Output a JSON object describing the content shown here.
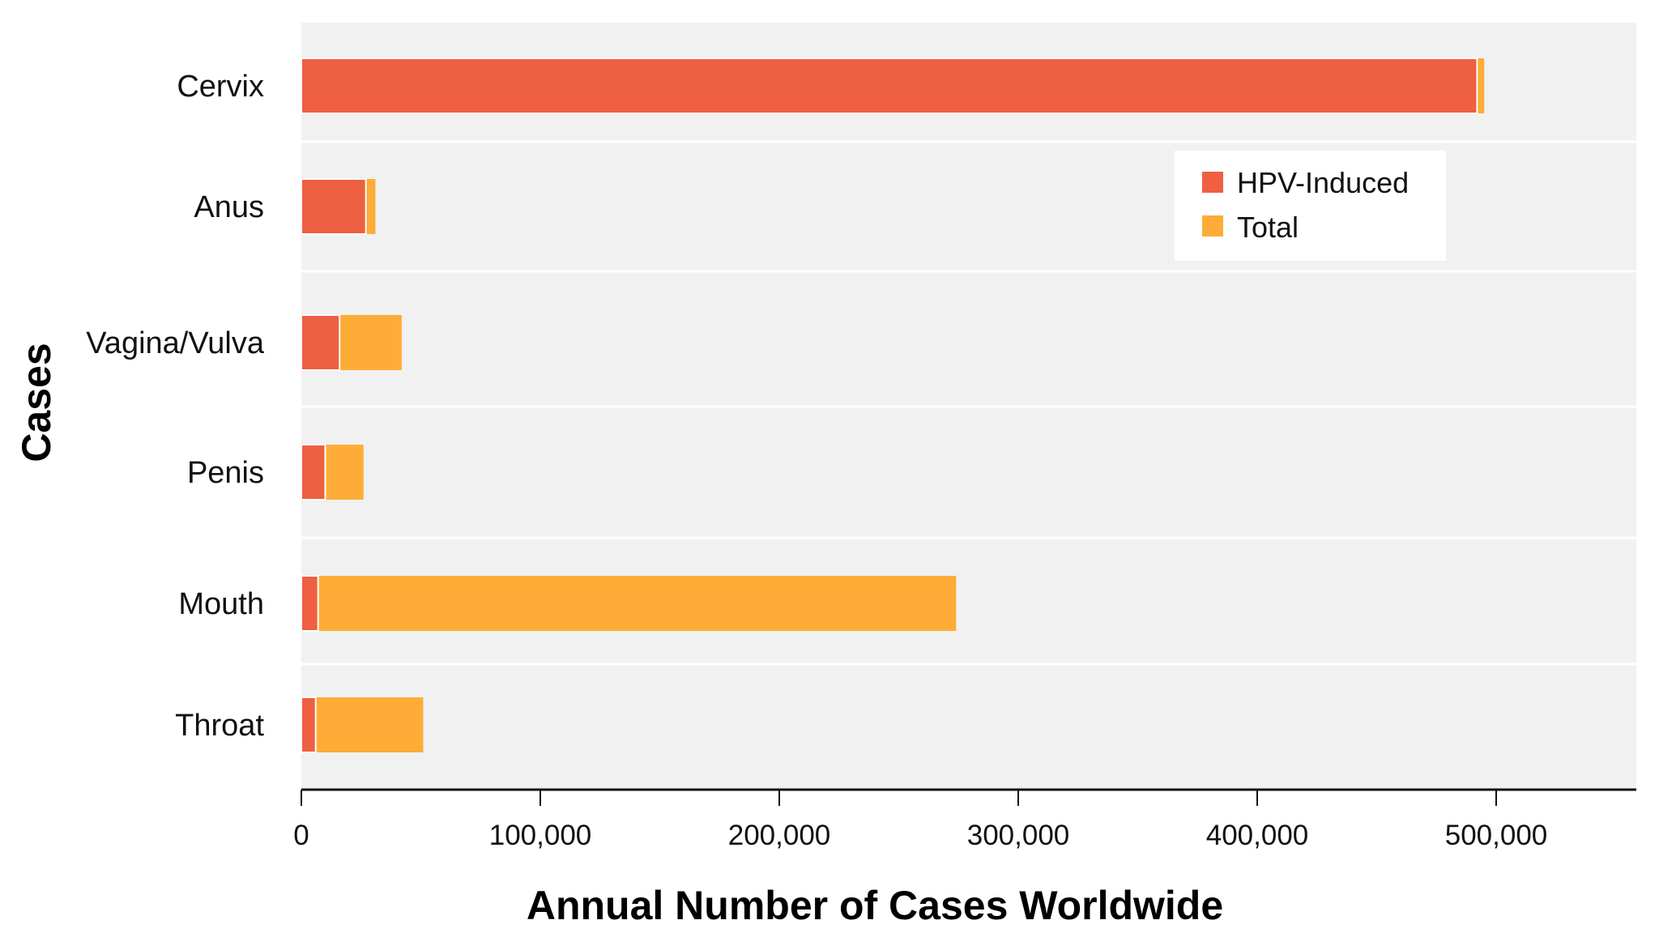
{
  "chart_data": {
    "type": "bar",
    "orientation": "horizontal",
    "stacked": true,
    "categories": [
      "Cervix",
      "Anus",
      "Vagina/Vulva",
      "Penis",
      "Mouth",
      "Throat"
    ],
    "series": [
      {
        "name": "HPV-Induced",
        "color": "#ef5f41",
        "values": [
          492000,
          27000,
          16000,
          10000,
          7000,
          6000
        ]
      },
      {
        "name": "Total",
        "color": "#fdad37",
        "values": [
          495000,
          31000,
          42000,
          26000,
          274000,
          51000
        ]
      }
    ],
    "xlabel": "Annual Number of  Cases Worldwide",
    "ylabel": "Cases",
    "xlim": [
      0,
      560000
    ],
    "xticks": [
      0,
      100000,
      200000,
      300000,
      400000,
      500000
    ],
    "xtick_labels": [
      "0",
      "100,000",
      "200,000",
      "300,000",
      "400,000",
      "500,000"
    ],
    "legend_position": "top-right",
    "background_color": "#f0f1f0",
    "grid": "horizontal-separators"
  }
}
